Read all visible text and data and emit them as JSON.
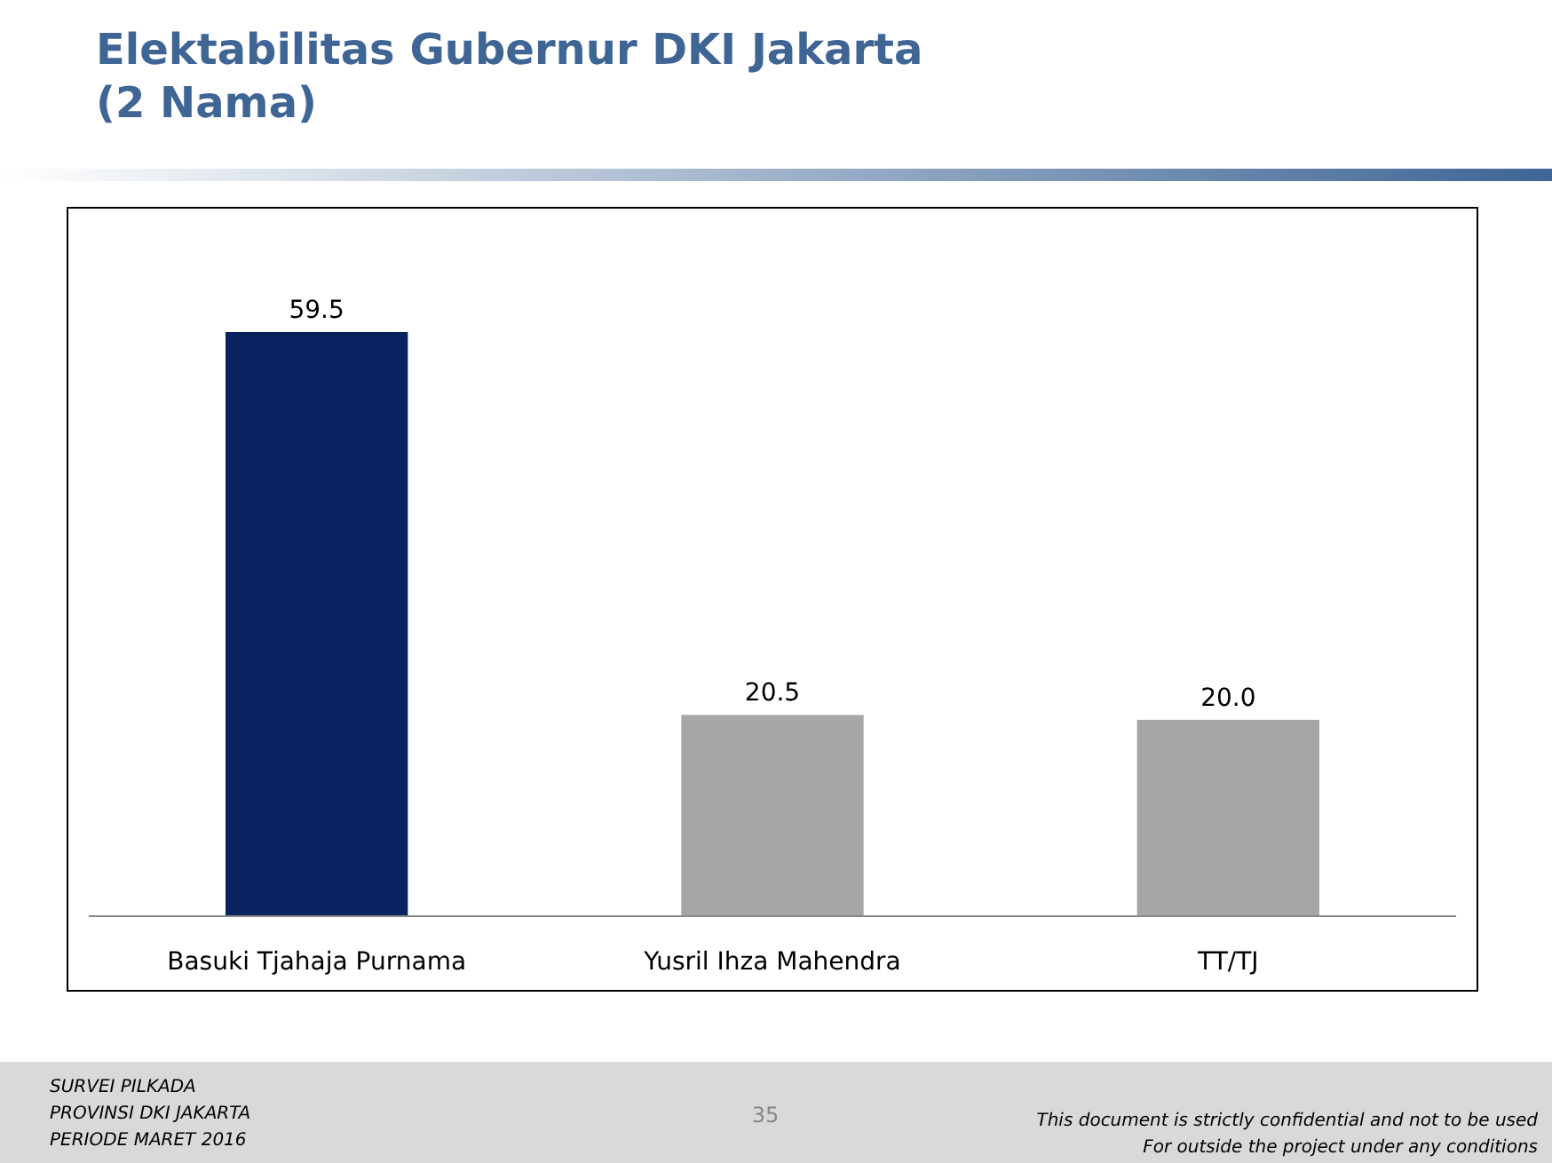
{
  "chart_data": {
    "type": "bar",
    "title": "Elektabilitas Gubernur DKI Jakarta\n(2 Nama)",
    "categories": [
      "Basuki Tjahaja Purnama",
      "Yusril Ihza Mahendra",
      "TT/TJ"
    ],
    "values": [
      59.5,
      20.5,
      20.0
    ],
    "colors": [
      "#0b2260",
      "#a6a6a6",
      "#a6a6a6"
    ],
    "value_labels": [
      "59.5",
      "20.5",
      "20.0"
    ],
    "annotations": [
      "SURVEI PILKADA",
      "PROVINSI DKI JAKARTA",
      "PERIODE  MARET 2016",
      "35",
      "This document is strictly confidential and not to be used",
      "For  outside the project under any conditions"
    ]
  }
}
